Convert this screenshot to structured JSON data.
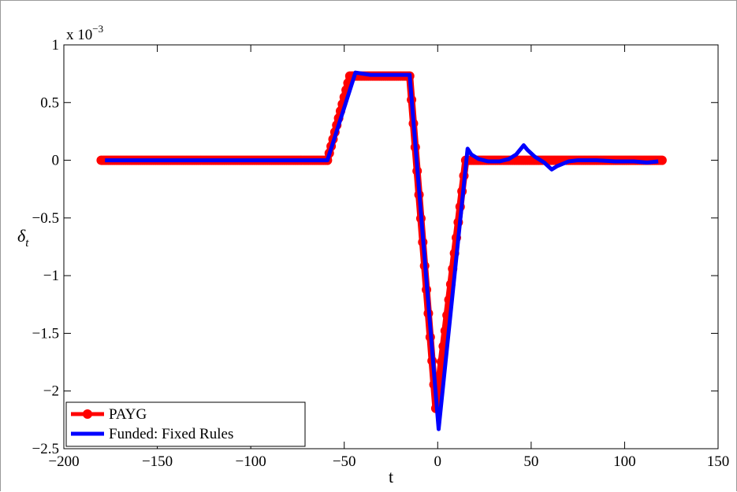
{
  "chart_data": {
    "type": "line",
    "title": "",
    "xlabel": "t",
    "ylabel": "δt",
    "ylabel_main": "δ",
    "ylabel_sub": "t",
    "y_scale_label_prefix": "x 10",
    "y_scale_label_exp": "−3",
    "xlim": [
      -200,
      150
    ],
    "ylim": [
      -2.5,
      1
    ],
    "xticks": [
      -200,
      -150,
      -100,
      -50,
      0,
      50,
      100,
      150
    ],
    "xtick_labels": [
      "−200",
      "−150",
      "−100",
      "−50",
      "0",
      "50",
      "100",
      "150"
    ],
    "yticks": [
      1,
      0.5,
      0,
      -0.5,
      -1,
      -1.5,
      -2,
      -2.5
    ],
    "ytick_labels": [
      "1",
      "0.5",
      "0",
      "−0.5",
      "−1",
      "−1.5",
      "−2",
      "−2.5"
    ],
    "grid": false,
    "legend_position": "bottom-left",
    "series": [
      {
        "name": "PAYG",
        "color": "#ff0000",
        "marker": "circle",
        "points": [
          [
            -180,
            0
          ],
          [
            -59,
            0
          ],
          [
            -47,
            0.73
          ],
          [
            -15,
            0.73
          ],
          [
            -1,
            -2.15
          ],
          [
            15,
            0
          ],
          [
            120,
            0
          ]
        ]
      },
      {
        "name": "Funded: Fixed Rules",
        "color": "#0000ff",
        "marker": "none",
        "points": [
          [
            -178,
            0
          ],
          [
            -59,
            0
          ],
          [
            -44,
            0.76
          ],
          [
            -40,
            0.75
          ],
          [
            -36,
            0.74
          ],
          [
            -15,
            0.74
          ],
          [
            0.5,
            -2.33
          ],
          [
            16,
            0.1
          ],
          [
            18,
            0.05
          ],
          [
            22,
            0.01
          ],
          [
            27,
            -0.01
          ],
          [
            33,
            -0.01
          ],
          [
            38,
            0.01
          ],
          [
            42,
            0.05
          ],
          [
            46,
            0.13
          ],
          [
            48,
            0.09
          ],
          [
            52,
            0.03
          ],
          [
            57,
            -0.02
          ],
          [
            61,
            -0.08
          ],
          [
            64,
            -0.05
          ],
          [
            70,
            -0.01
          ],
          [
            75,
            0.0
          ],
          [
            85,
            0.0
          ],
          [
            95,
            -0.01
          ],
          [
            105,
            -0.01
          ],
          [
            112,
            -0.02
          ],
          [
            118,
            -0.01
          ]
        ]
      }
    ]
  }
}
